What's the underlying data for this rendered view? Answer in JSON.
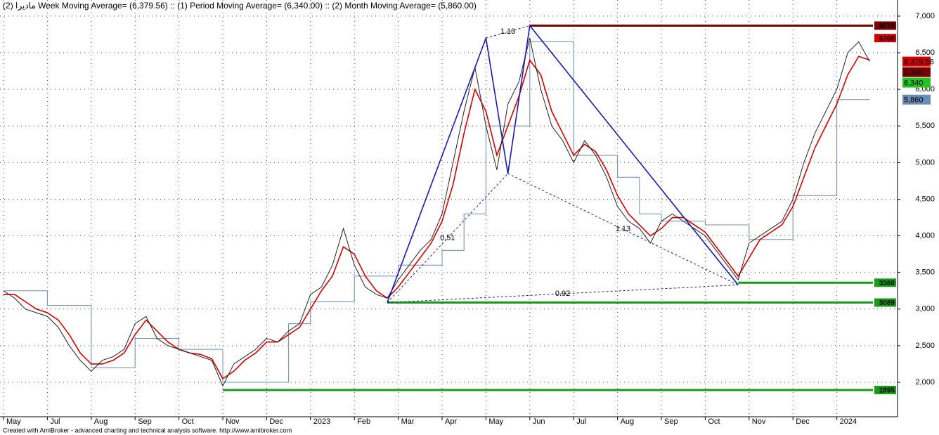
{
  "chart_data": {
    "type": "line",
    "title": "مادیرا (2) Week Moving Average= (6,379.56) :: (1) Period Moving Average= (6,340.00) :: (2) Month Moving Average= (5,860.00)",
    "footer": "Created with AmiBroker - advanced charting and technical analysis software. http://www.amibroker.com",
    "x": [
      "May",
      null,
      null,
      null,
      "Jul",
      null,
      null,
      null,
      "Aug",
      null,
      null,
      null,
      "Sep",
      null,
      null,
      null,
      "Oct",
      null,
      null,
      null,
      "Nov",
      null,
      null,
      null,
      "Dec",
      null,
      null,
      null,
      "2023",
      null,
      null,
      null,
      "Feb",
      null,
      null,
      null,
      "Mar",
      null,
      null,
      null,
      "Apr",
      null,
      null,
      null,
      "May",
      null,
      null,
      null,
      "Jun",
      null,
      null,
      null,
      "Jul",
      null,
      null,
      null,
      "Aug",
      null,
      null,
      null,
      "Sep",
      null,
      null,
      null,
      "Oct",
      null,
      null,
      null,
      "Nov",
      null,
      null,
      null,
      "Dec",
      null,
      null,
      null,
      "2024",
      null,
      null,
      null
    ],
    "series": [
      {
        "name": "Price",
        "color": "#222222",
        "step": false,
        "width": 1,
        "values": [
          3250,
          3150,
          3000,
          2950,
          2900,
          2750,
          2500,
          2300,
          2150,
          2300,
          2350,
          2450,
          2800,
          2900,
          2600,
          2500,
          2450,
          2400,
          2350,
          2300,
          1950,
          2250,
          2350,
          2450,
          2600,
          2550,
          2700,
          2800,
          3200,
          3300,
          3600,
          4100,
          3600,
          3300,
          3200,
          3150,
          3400,
          3600,
          3800,
          3950,
          4300,
          5000,
          5700,
          6300,
          5500,
          4900,
          5800,
          6100,
          6700,
          6000,
          5500,
          5300,
          5000,
          5300,
          5100,
          4800,
          4400,
          4200,
          4100,
          3900,
          4200,
          4300,
          4200,
          4100,
          4000,
          3800,
          3600,
          3400,
          3900,
          4000,
          4100,
          4200,
          4500,
          5000,
          5400,
          5700,
          6000,
          6500,
          6650,
          6380
        ]
      },
      {
        "name": "Week Moving Average",
        "color": "#d00000",
        "step": false,
        "width": 1.6,
        "values": [
          3200,
          3200,
          3100,
          3000,
          2950,
          2850,
          2650,
          2400,
          2250,
          2250,
          2300,
          2400,
          2650,
          2850,
          2700,
          2550,
          2450,
          2400,
          2380,
          2320,
          2050,
          2150,
          2300,
          2400,
          2550,
          2550,
          2650,
          2750,
          3000,
          3250,
          3450,
          3850,
          3750,
          3450,
          3250,
          3150,
          3300,
          3500,
          3700,
          3900,
          4200,
          4700,
          5400,
          6000,
          5700,
          5100,
          5500,
          5900,
          6400,
          6200,
          5700,
          5400,
          5100,
          5250,
          5150,
          4900,
          4550,
          4300,
          4150,
          4000,
          4100,
          4250,
          4250,
          4150,
          4050,
          3850,
          3650,
          3450,
          3700,
          3950,
          4050,
          4150,
          4400,
          4800,
          5200,
          5500,
          5800,
          6200,
          6450,
          6400
        ]
      },
      {
        "name": "Month Moving Average",
        "color": "#6a8cb4",
        "step": true,
        "width": 1,
        "values": [
          3250,
          3250,
          3250,
          3250,
          3050,
          3050,
          3050,
          3050,
          2200,
          2200,
          2200,
          2200,
          2600,
          2600,
          2600,
          2600,
          2450,
          2450,
          2450,
          2450,
          2000,
          2000,
          2000,
          2000,
          2000,
          2000,
          2800,
          2800,
          3100,
          3100,
          3100,
          3100,
          3450,
          3450,
          3450,
          3450,
          3600,
          3600,
          3600,
          3600,
          3800,
          3800,
          4300,
          4300,
          5500,
          5500,
          5500,
          5500,
          6650,
          6650,
          6650,
          6650,
          5100,
          5100,
          5100,
          5100,
          4800,
          4800,
          4300,
          4300,
          4200,
          4200,
          4200,
          4200,
          4150,
          4150,
          4150,
          4150,
          3950,
          3950,
          3950,
          3950,
          4550,
          4550,
          4550,
          4550,
          5860,
          5860,
          5860,
          5860
        ]
      }
    ],
    "pattern": {
      "color": "#1a1aa8",
      "values": [
        null,
        null,
        null,
        null,
        null,
        null,
        null,
        null,
        null,
        null,
        null,
        null,
        null,
        null,
        null,
        null,
        null,
        null,
        null,
        null,
        null,
        null,
        null,
        null,
        null,
        null,
        null,
        null,
        null,
        null,
        null,
        null,
        null,
        null,
        null,
        3089,
        null,
        null,
        null,
        null,
        null,
        null,
        null,
        null,
        6700,
        null,
        4850,
        null,
        6870,
        null,
        null,
        null,
        null,
        null,
        null,
        null,
        null,
        null,
        null,
        null,
        null,
        null,
        null,
        null,
        null,
        null,
        null,
        3330,
        null,
        null,
        null,
        null,
        null,
        null,
        null,
        null,
        null,
        null,
        null,
        null
      ],
      "ratios": [
        "0.51",
        "1.13",
        "1.13",
        "0.92"
      ]
    },
    "levels": [
      {
        "value": 6870,
        "color": "#7a0000"
      },
      {
        "value": 3360,
        "color": "#1a9a1a"
      },
      {
        "value": 3089,
        "color": "#1a9a1a"
      },
      {
        "value": 1895,
        "color": "#1a9a1a"
      }
    ],
    "level_tags": [
      {
        "value": 6870,
        "label": "6870",
        "color": "#7a0000"
      },
      {
        "value": 6700,
        "label": "6700",
        "color": "#d00000"
      },
      {
        "value": 3360,
        "label": "3360",
        "color": "#1a9a1a"
      },
      {
        "value": 3089,
        "label": "3089",
        "color": "#1a9a1a"
      },
      {
        "value": 1895,
        "label": "1895",
        "color": "#1a9a1a"
      }
    ],
    "axis_tags": [
      {
        "value": 6379.56,
        "label": "6,379.56",
        "color": "#d00000"
      },
      {
        "value": 6340,
        "label": "6,340",
        "color": "#7a0000"
      },
      {
        "value": 6340,
        "label": "6,340",
        "color": "#22c322"
      },
      {
        "value": 5860,
        "label": "5,860",
        "color": "#6a8cb4"
      }
    ],
    "ylim": [
      1530,
      7220
    ],
    "yticks": [
      {
        "value": 2000,
        "label": "2,000"
      },
      {
        "value": 2500,
        "label": "2,500"
      },
      {
        "value": 3000,
        "label": "3,000"
      },
      {
        "value": 3500,
        "label": "3,500"
      },
      {
        "value": 4000,
        "label": "4,000"
      },
      {
        "value": 4500,
        "label": "4,500"
      },
      {
        "value": 5000,
        "label": "5,000"
      },
      {
        "value": 5500,
        "label": "5,500"
      },
      {
        "value": 6000,
        "label": "6,000"
      },
      {
        "value": 6500,
        "label": "6,500"
      },
      {
        "value": 7000,
        "label": "7,000"
      }
    ],
    "grid": true
  }
}
